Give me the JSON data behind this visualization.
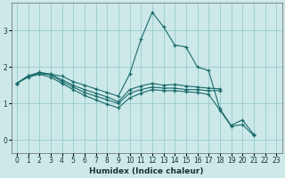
{
  "xlabel": "Humidex (Indice chaleur)",
  "background_color": "#cce8e8",
  "grid_color": "#99cccc",
  "line_color": "#1a6b6b",
  "xlim": [
    -0.5,
    23.5
  ],
  "ylim": [
    -0.35,
    3.75
  ],
  "yticks": [
    0,
    1,
    2,
    3
  ],
  "xticks": [
    0,
    1,
    2,
    3,
    4,
    5,
    6,
    7,
    8,
    9,
    10,
    11,
    12,
    13,
    14,
    15,
    16,
    17,
    18,
    19,
    20,
    21,
    22,
    23
  ],
  "series": [
    {
      "x": [
        0,
        1,
        2,
        3,
        4,
        5,
        6,
        7,
        8,
        9,
        10,
        11,
        12,
        13,
        14,
        15,
        16,
        17,
        18,
        19,
        20,
        21,
        22
      ],
      "y": [
        1.55,
        1.75,
        1.85,
        1.8,
        1.75,
        1.6,
        1.5,
        1.4,
        1.3,
        1.2,
        1.8,
        2.75,
        3.5,
        3.1,
        2.6,
        2.55,
        2.0,
        1.9,
        0.85,
        0.4,
        0.55,
        0.15,
        null
      ]
    },
    {
      "x": [
        0,
        1,
        2,
        3,
        4,
        5,
        6,
        7,
        8,
        9,
        10,
        11,
        12,
        13,
        14,
        15,
        16,
        17,
        18
      ],
      "y": [
        1.55,
        1.75,
        1.85,
        1.8,
        1.65,
        1.5,
        1.38,
        1.28,
        1.18,
        1.05,
        1.38,
        1.48,
        1.55,
        1.5,
        1.52,
        1.48,
        1.45,
        1.42,
        1.4
      ]
    },
    {
      "x": [
        0,
        1,
        2,
        3,
        4,
        5,
        6,
        7,
        8,
        9,
        10,
        11,
        12,
        13,
        14,
        15,
        16,
        17,
        18
      ],
      "y": [
        1.55,
        1.75,
        1.82,
        1.78,
        1.6,
        1.45,
        1.3,
        1.2,
        1.1,
        1.0,
        1.28,
        1.38,
        1.45,
        1.42,
        1.42,
        1.38,
        1.38,
        1.35,
        1.35
      ]
    },
    {
      "x": [
        0,
        1,
        2,
        3,
        4,
        5,
        6,
        7,
        8,
        9,
        10,
        11,
        12,
        13,
        14,
        15,
        16,
        17,
        18,
        19,
        20,
        21,
        22
      ],
      "y": [
        1.55,
        1.72,
        1.8,
        1.72,
        1.55,
        1.38,
        1.22,
        1.1,
        0.98,
        0.88,
        1.15,
        1.28,
        1.38,
        1.35,
        1.35,
        1.32,
        1.3,
        1.25,
        0.82,
        0.38,
        0.42,
        0.12,
        null
      ]
    }
  ]
}
